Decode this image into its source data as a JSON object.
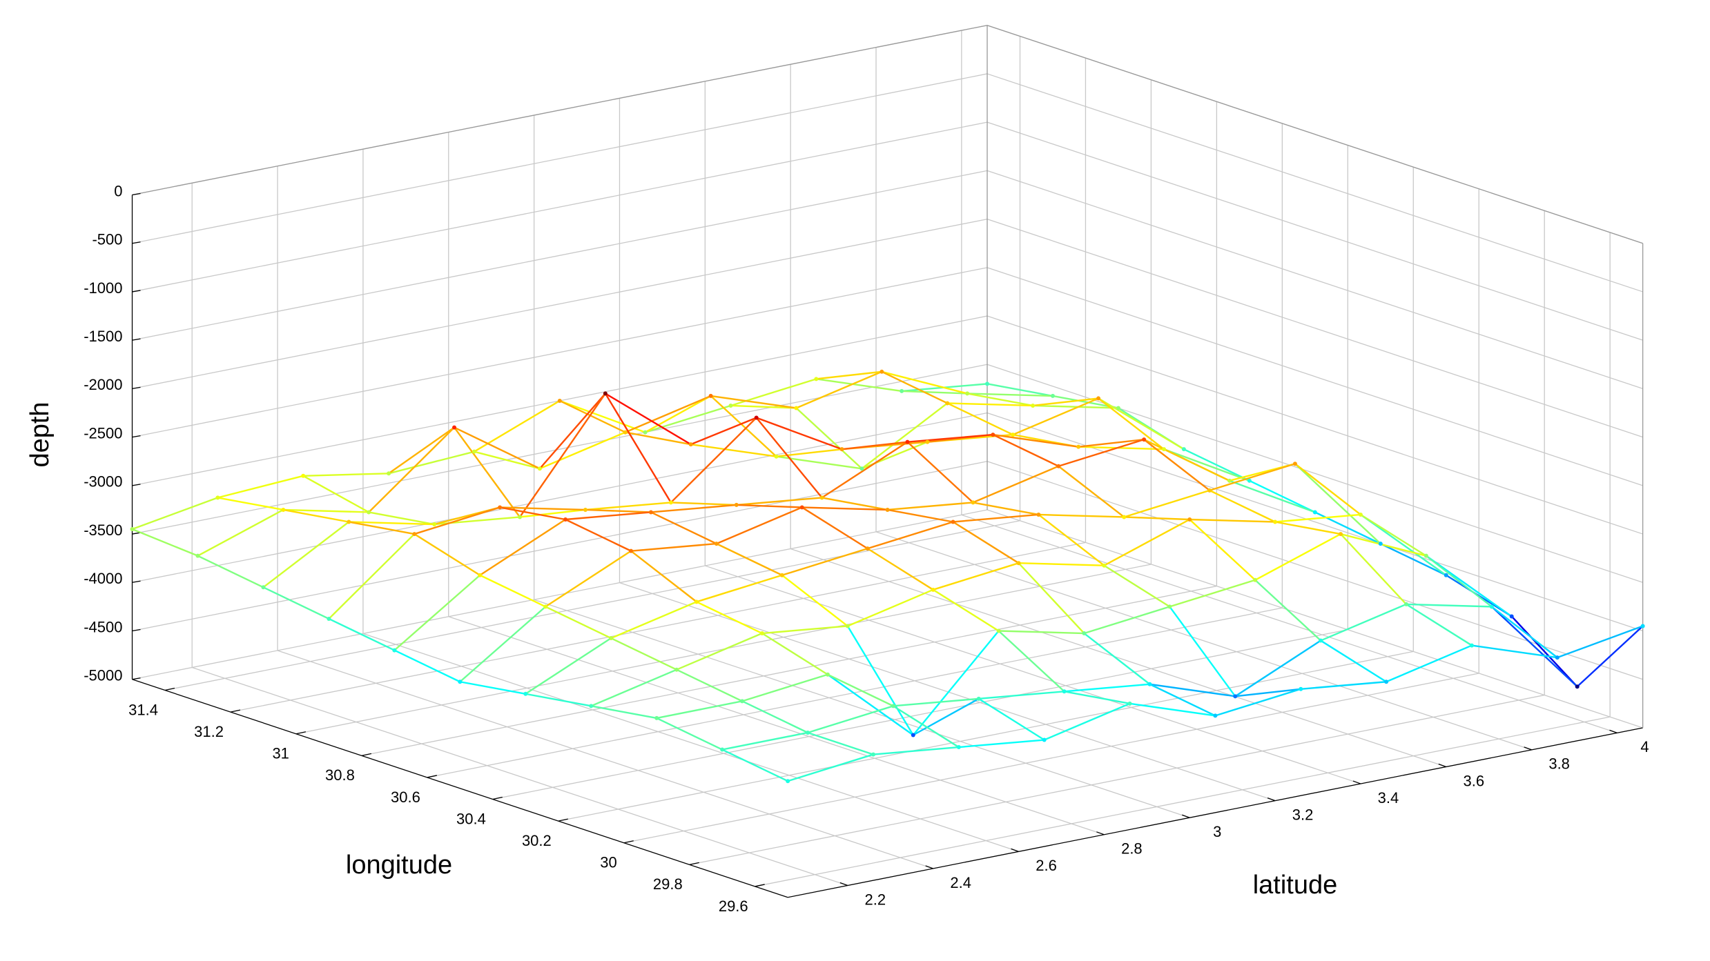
{
  "chart_data": {
    "type": "mesh",
    "z_label": "depth",
    "y_label": "longitude",
    "x_label": "latitude",
    "colormap": "jet",
    "grid": true,
    "x": [
      2.06,
      2.26,
      2.46,
      2.66,
      2.86,
      3.06,
      3.26,
      3.46,
      3.66,
      3.86,
      4.06
    ],
    "y": [
      29.5,
      29.7,
      29.9,
      30.1,
      30.3,
      30.5,
      30.7,
      30.9,
      31.1,
      31.3,
      31.5
    ],
    "z": [
      [
        -3800,
        -3700,
        -3800,
        -3900,
        -3700,
        -4000,
        -3900,
        -4000,
        -3800,
        -4100,
        -3950
      ],
      [
        -3700,
        -3700,
        -3600,
        -3700,
        -3800,
        -3900,
        -4200,
        -3800,
        -3600,
        -3800,
        -4800
      ],
      [
        -3600,
        -3600,
        -3500,
        -4300,
        -3400,
        -3600,
        -3500,
        -3400,
        -3100,
        -3500,
        -4300
      ],
      [
        -3700,
        -3500,
        -3300,
        -3400,
        -3200,
        -3100,
        -3300,
        -3000,
        -3200,
        -3300,
        -4100
      ],
      [
        -3800,
        -3400,
        -3200,
        -3100,
        -3000,
        -2900,
        -3000,
        -3200,
        -3100,
        -3000,
        -4000
      ],
      [
        -3900,
        -3300,
        -2900,
        -3000,
        -2800,
        -3000,
        -3100,
        -2900,
        -2800,
        -3400,
        -3900
      ],
      [
        -3800,
        -3200,
        -2800,
        -2900,
        -3000,
        -3100,
        -2700,
        -2800,
        -3100,
        -3300,
        -3800
      ],
      [
        -3700,
        -3000,
        -2900,
        -3100,
        -3200,
        -2500,
        -3000,
        -3100,
        -3200,
        -3000,
        -3700
      ],
      [
        -3600,
        -3100,
        -3300,
        -3400,
        -2300,
        -3000,
        -3300,
        -3600,
        -3100,
        -3300,
        -3500
      ],
      [
        -3500,
        -3200,
        -3400,
        -2700,
        -3300,
        -3100,
        -2900,
        -3200,
        -3000,
        -3400,
        -3600
      ],
      [
        -3450,
        -3300,
        -3250,
        -3400,
        -3350,
        -3000,
        -3500,
        -3400,
        -3300,
        -3600,
        -3700
      ]
    ],
    "xlim": [
      2.06,
      4.06
    ],
    "ylim": [
      29.5,
      31.5
    ],
    "zlim": [
      -5000,
      0
    ],
    "xticks": [
      2.2,
      2.4,
      2.6,
      2.8,
      3,
      3.2,
      3.4,
      3.6,
      3.8,
      4
    ],
    "yticks": [
      29.6,
      29.8,
      30,
      30.2,
      30.4,
      30.6,
      30.8,
      31,
      31.2,
      31.4
    ],
    "zticks": [
      0,
      -500,
      -1000,
      -1500,
      -2000,
      -2500,
      -3000,
      -3500,
      -4000,
      -4500,
      -5000
    ]
  }
}
